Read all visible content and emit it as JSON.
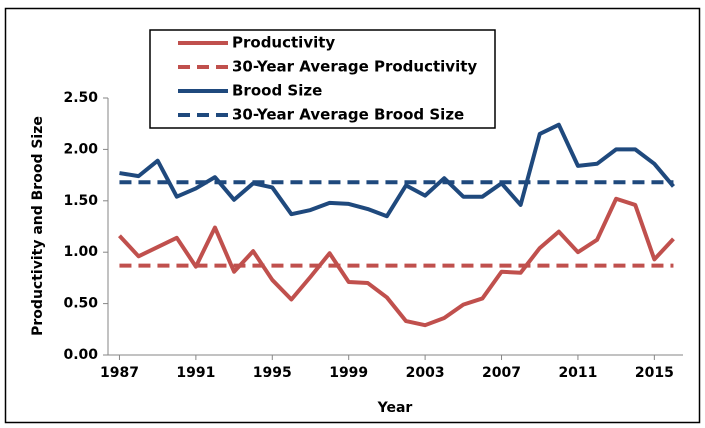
{
  "chart_data": {
    "type": "line",
    "x_label": "Year",
    "y_label": "Productivity and Brood Size",
    "x": [
      1987,
      1988,
      1989,
      1990,
      1991,
      1992,
      1993,
      1994,
      1995,
      1996,
      1997,
      1998,
      1999,
      2000,
      2001,
      2002,
      2003,
      2004,
      2005,
      2006,
      2007,
      2008,
      2009,
      2010,
      2011,
      2012,
      2013,
      2014,
      2015,
      2016
    ],
    "series": [
      {
        "name": "Productivity",
        "color": "#c0504d",
        "dashed": false,
        "values": [
          1.16,
          0.96,
          1.05,
          1.14,
          0.86,
          1.24,
          0.81,
          1.01,
          0.73,
          0.54,
          0.76,
          0.99,
          0.71,
          0.7,
          0.56,
          0.33,
          0.29,
          0.36,
          0.49,
          0.55,
          0.81,
          0.8,
          1.04,
          1.2,
          1.0,
          1.12,
          1.52,
          1.46,
          0.93,
          1.13
        ]
      },
      {
        "name": "30-Year Average Productivity",
        "color": "#c0504d",
        "dashed": true,
        "values": [
          0.87,
          0.87,
          0.87,
          0.87,
          0.87,
          0.87,
          0.87,
          0.87,
          0.87,
          0.87,
          0.87,
          0.87,
          0.87,
          0.87,
          0.87,
          0.87,
          0.87,
          0.87,
          0.87,
          0.87,
          0.87,
          0.87,
          0.87,
          0.87,
          0.87,
          0.87,
          0.87,
          0.87,
          0.87,
          0.87
        ]
      },
      {
        "name": "Brood Size",
        "color": "#1f497d",
        "dashed": false,
        "values": [
          1.77,
          1.74,
          1.89,
          1.54,
          1.62,
          1.73,
          1.51,
          1.67,
          1.63,
          1.37,
          1.41,
          1.48,
          1.47,
          1.42,
          1.35,
          1.65,
          1.55,
          1.72,
          1.54,
          1.54,
          1.67,
          1.46,
          2.15,
          2.24,
          1.84,
          1.86,
          2.0,
          2.0,
          1.86,
          1.64
        ]
      },
      {
        "name": "30-Year Average Brood Size",
        "color": "#1f497d",
        "dashed": true,
        "values": [
          1.68,
          1.68,
          1.68,
          1.68,
          1.68,
          1.68,
          1.68,
          1.68,
          1.68,
          1.68,
          1.68,
          1.68,
          1.68,
          1.68,
          1.68,
          1.68,
          1.68,
          1.68,
          1.68,
          1.68,
          1.68,
          1.68,
          1.68,
          1.68,
          1.68,
          1.68,
          1.68,
          1.68,
          1.68,
          1.68
        ]
      }
    ],
    "xlim": [
      1986.4,
      2016.5
    ],
    "ylim": [
      0,
      2.5
    ],
    "xticks": [
      1987,
      1991,
      1995,
      1999,
      2003,
      2007,
      2011,
      2015
    ],
    "yticks": [
      {
        "value": 0,
        "label": "0.00"
      },
      {
        "value": 0.5,
        "label": "0.50"
      },
      {
        "value": 1,
        "label": "1.00"
      },
      {
        "value": 1.5,
        "label": "1.50"
      },
      {
        "value": 2,
        "label": "2.00"
      },
      {
        "value": 2.5,
        "label": "2.50"
      }
    ],
    "legend": "top-left",
    "grid": false
  }
}
